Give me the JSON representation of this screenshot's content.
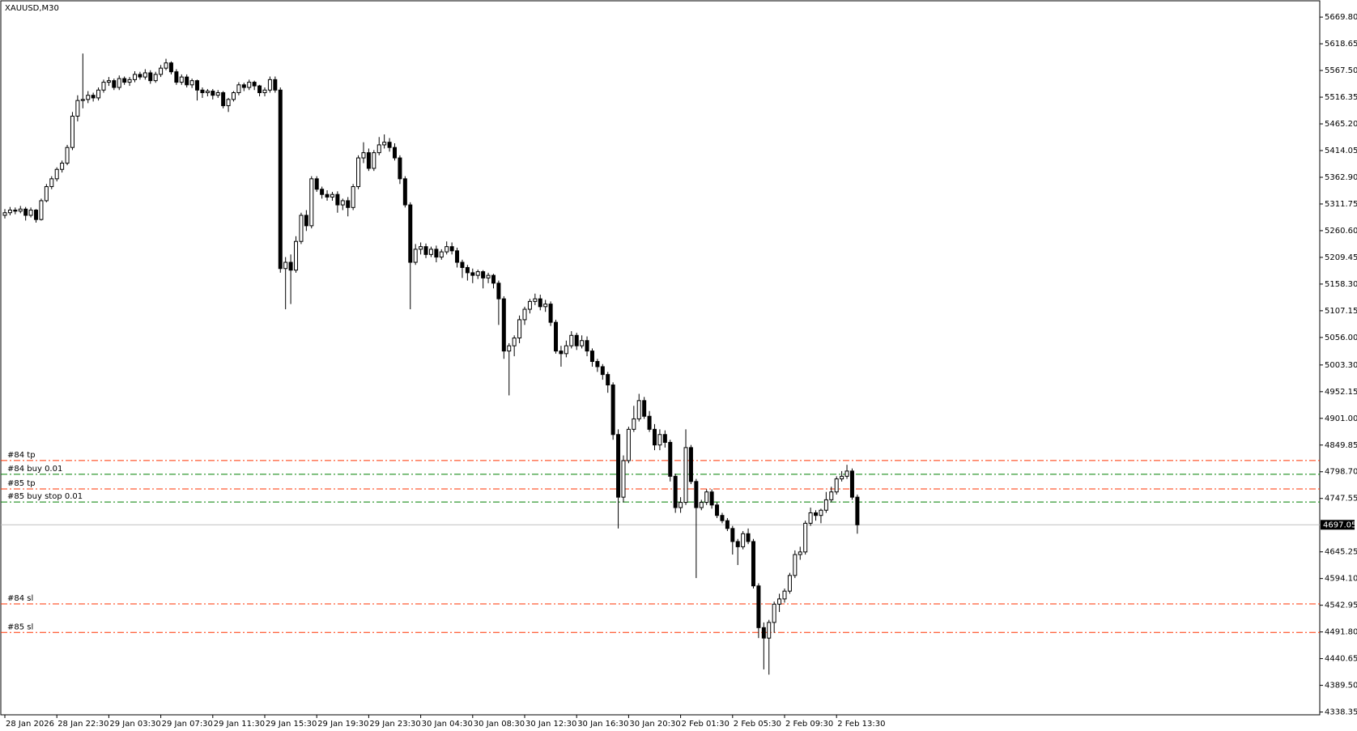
{
  "chart_data": {
    "type": "candlestick",
    "title": "XAUUSD,M30",
    "up_color": "#ffffff",
    "down_color": "#000000",
    "outline_color": "#000000",
    "categories": [
      "28 Jan 2026",
      null,
      null,
      null,
      null,
      null,
      null,
      null,
      null,
      null,
      "28 Jan 22:30",
      null,
      null,
      null,
      null,
      null,
      null,
      null,
      null,
      null,
      "29 Jan 03:30",
      null,
      null,
      null,
      null,
      null,
      null,
      null,
      null,
      null,
      "29 Jan 07:30",
      null,
      null,
      null,
      null,
      null,
      null,
      null,
      null,
      null,
      "29 Jan 11:30",
      null,
      null,
      null,
      null,
      null,
      null,
      null,
      null,
      null,
      "29 Jan 15:30",
      null,
      null,
      null,
      null,
      null,
      null,
      null,
      null,
      null,
      "29 Jan 19:30",
      null,
      null,
      null,
      null,
      null,
      null,
      null,
      null,
      null,
      "29 Jan 23:30",
      null,
      null,
      null,
      null,
      null,
      null,
      null,
      null,
      null,
      "30 Jan 04:30",
      null,
      null,
      null,
      null,
      null,
      null,
      null,
      null,
      null,
      "30 Jan 08:30",
      null,
      null,
      null,
      null,
      null,
      null,
      null,
      null,
      null,
      "30 Jan 12:30",
      null,
      null,
      null,
      null,
      null,
      null,
      null,
      null,
      null,
      "30 Jan 16:30",
      null,
      null,
      null,
      null,
      null,
      null,
      null,
      null,
      null,
      "30 Jan 20:30",
      null,
      null,
      null,
      null,
      null,
      null,
      null,
      null,
      null,
      "2 Feb 01:30",
      null,
      null,
      null,
      null,
      null,
      null,
      null,
      null,
      null,
      "2 Feb 05:30",
      null,
      null,
      null,
      null,
      null,
      null,
      null,
      null,
      null,
      "2 Feb 09:30",
      null,
      null,
      null,
      null,
      null,
      null,
      null,
      null,
      null,
      "2 Feb 13:30",
      null,
      null,
      null,
      null
    ],
    "open": [
      5290,
      5295,
      5300,
      5298,
      5302,
      5290,
      5300,
      5282,
      5318,
      5345,
      5360,
      5378,
      5390,
      5420,
      5480,
      5510,
      5512,
      5520,
      5515,
      5530,
      5545,
      5548,
      5535,
      5552,
      5545,
      5550,
      5560,
      5555,
      5563,
      5548,
      5560,
      5572,
      5582,
      5565,
      5545,
      5555,
      5540,
      5548,
      5530,
      5525,
      5528,
      5520,
      5525,
      5500,
      5512,
      5525,
      5540,
      5535,
      5545,
      5538,
      5525,
      5530,
      5550,
      5530,
      5188,
      5200,
      5185,
      5240,
      5290,
      5270,
      5360,
      5340,
      5330,
      5325,
      5330,
      5310,
      5318,
      5305,
      5345,
      5400,
      5410,
      5380,
      5410,
      5425,
      5430,
      5420,
      5400,
      5360,
      5310,
      5200,
      5225,
      5230,
      5215,
      5225,
      5210,
      5220,
      5230,
      5222,
      5200,
      5190,
      5180,
      5175,
      5182,
      5170,
      5175,
      5160,
      5130,
      5030,
      5040,
      5055,
      5090,
      5110,
      5125,
      5130,
      5115,
      5120,
      5085,
      5030,
      5025,
      5040,
      5060,
      5040,
      5050,
      5030,
      5010,
      5000,
      4985,
      4965,
      4870,
      4750,
      4820,
      4880,
      4900,
      4935,
      4905,
      4880,
      4850,
      4870,
      4855,
      4790,
      4730,
      4740,
      4845,
      4780,
      4730,
      4740,
      4760,
      4735,
      4715,
      4705,
      4690,
      4665,
      4655,
      4680,
      4665,
      4580,
      4500,
      4480,
      4510,
      4545,
      4555,
      4570,
      4600,
      4640,
      4645,
      4700,
      4720,
      4715,
      4725,
      4745,
      4760,
      4785,
      4790,
      4800,
      4750
    ],
    "high": [
      5302,
      5306,
      5305,
      5308,
      5306,
      5305,
      5302,
      5322,
      5350,
      5365,
      5382,
      5395,
      5425,
      5488,
      5520,
      5600,
      5528,
      5525,
      5535,
      5550,
      5555,
      5552,
      5558,
      5556,
      5555,
      5566,
      5565,
      5570,
      5568,
      5565,
      5578,
      5590,
      5585,
      5570,
      5560,
      5560,
      5552,
      5550,
      5535,
      5532,
      5532,
      5530,
      5528,
      5515,
      5528,
      5545,
      5544,
      5550,
      5548,
      5540,
      5535,
      5556,
      5556,
      5535,
      5210,
      5215,
      5250,
      5295,
      5300,
      5365,
      5365,
      5345,
      5338,
      5335,
      5336,
      5322,
      5325,
      5350,
      5405,
      5430,
      5418,
      5415,
      5440,
      5445,
      5438,
      5428,
      5405,
      5365,
      5315,
      5235,
      5238,
      5236,
      5230,
      5232,
      5225,
      5240,
      5238,
      5228,
      5205,
      5195,
      5188,
      5186,
      5185,
      5180,
      5178,
      5165,
      5135,
      5045,
      5060,
      5098,
      5115,
      5130,
      5140,
      5138,
      5128,
      5125,
      5090,
      5040,
      5050,
      5068,
      5065,
      5060,
      5058,
      5035,
      5015,
      5005,
      4990,
      4970,
      4880,
      4830,
      4885,
      4925,
      4948,
      4942,
      4915,
      4890,
      4880,
      4878,
      4860,
      4795,
      4750,
      4880,
      4850,
      4785,
      4745,
      4765,
      4765,
      4740,
      4720,
      4710,
      4695,
      4670,
      4685,
      4690,
      4670,
      4585,
      4510,
      4515,
      4550,
      4565,
      4575,
      4605,
      4648,
      4655,
      4705,
      4730,
      4725,
      4728,
      4760,
      4770,
      4790,
      4800,
      4812,
      4805,
      4755
    ],
    "low": [
      5284,
      5290,
      5292,
      5294,
      5280,
      5286,
      5276,
      5280,
      5315,
      5340,
      5355,
      5372,
      5386,
      5415,
      5470,
      5495,
      5505,
      5508,
      5510,
      5525,
      5538,
      5530,
      5530,
      5540,
      5538,
      5545,
      5550,
      5550,
      5542,
      5544,
      5555,
      5568,
      5560,
      5540,
      5540,
      5535,
      5534,
      5510,
      5515,
      5518,
      5512,
      5515,
      5495,
      5488,
      5508,
      5520,
      5528,
      5530,
      5530,
      5518,
      5518,
      5525,
      5525,
      5180,
      5110,
      5120,
      5180,
      5235,
      5260,
      5265,
      5335,
      5322,
      5318,
      5318,
      5295,
      5300,
      5288,
      5300,
      5340,
      5390,
      5375,
      5375,
      5405,
      5418,
      5412,
      5395,
      5350,
      5305,
      5110,
      5195,
      5215,
      5208,
      5210,
      5200,
      5205,
      5215,
      5215,
      5190,
      5170,
      5165,
      5160,
      5168,
      5150,
      5160,
      5150,
      5080,
      5015,
      4945,
      5020,
      5045,
      5080,
      5102,
      5118,
      5108,
      5105,
      5078,
      5025,
      5000,
      5018,
      5035,
      5032,
      5035,
      5020,
      5000,
      4990,
      4975,
      4950,
      4860,
      4690,
      4740,
      4815,
      4875,
      4895,
      4900,
      4875,
      4840,
      4840,
      4845,
      4780,
      4720,
      4720,
      4735,
      4775,
      4595,
      4725,
      4735,
      4728,
      4710,
      4700,
      4685,
      4640,
      4620,
      4650,
      4660,
      4575,
      4480,
      4420,
      4410,
      4490,
      4530,
      4548,
      4565,
      4595,
      4630,
      4640,
      4695,
      4705,
      4700,
      4720,
      4740,
      4755,
      4780,
      4785,
      4745,
      4680
    ],
    "close": [
      5295,
      5300,
      5298,
      5302,
      5290,
      5300,
      5282,
      5318,
      5345,
      5360,
      5378,
      5390,
      5420,
      5480,
      5510,
      5512,
      5520,
      5515,
      5530,
      5545,
      5548,
      5535,
      5552,
      5545,
      5550,
      5560,
      5555,
      5563,
      5548,
      5560,
      5572,
      5582,
      5565,
      5545,
      5555,
      5540,
      5548,
      5530,
      5525,
      5528,
      5520,
      5525,
      5500,
      5512,
      5525,
      5540,
      5535,
      5545,
      5538,
      5525,
      5530,
      5550,
      5530,
      5188,
      5200,
      5185,
      5240,
      5290,
      5270,
      5360,
      5340,
      5330,
      5325,
      5330,
      5310,
      5318,
      5305,
      5345,
      5400,
      5410,
      5380,
      5410,
      5425,
      5430,
      5420,
      5400,
      5360,
      5310,
      5200,
      5225,
      5230,
      5215,
      5225,
      5210,
      5220,
      5230,
      5222,
      5200,
      5190,
      5180,
      5175,
      5182,
      5170,
      5175,
      5160,
      5130,
      5030,
      5040,
      5055,
      5090,
      5110,
      5125,
      5130,
      5115,
      5120,
      5085,
      5030,
      5025,
      5040,
      5060,
      5040,
      5050,
      5030,
      5010,
      5000,
      4985,
      4965,
      4870,
      4750,
      4820,
      4880,
      4900,
      4935,
      4905,
      4880,
      4850,
      4870,
      4855,
      4790,
      4730,
      4740,
      4845,
      4780,
      4730,
      4740,
      4760,
      4735,
      4715,
      4705,
      4690,
      4665,
      4655,
      4680,
      4665,
      4580,
      4500,
      4480,
      4510,
      4545,
      4555,
      4570,
      4600,
      4640,
      4645,
      4700,
      4720,
      4715,
      4725,
      4745,
      4760,
      4785,
      4790,
      4800,
      4750,
      4697.05
    ],
    "ylim": [
      4333,
      5701
    ],
    "yticks": [
      {
        "value": 5669.8,
        "label": "5669.80"
      },
      {
        "value": 5618.65,
        "label": "5618.65"
      },
      {
        "value": 5567.5,
        "label": "5567.50"
      },
      {
        "value": 5516.35,
        "label": "5516.35"
      },
      {
        "value": 5465.2,
        "label": "5465.20"
      },
      {
        "value": 5414.05,
        "label": "5414.05"
      },
      {
        "value": 5362.9,
        "label": "5362.90"
      },
      {
        "value": 5311.75,
        "label": "5311.75"
      },
      {
        "value": 5260.6,
        "label": "5260.60"
      },
      {
        "value": 5209.45,
        "label": "5209.45"
      },
      {
        "value": 5158.3,
        "label": "5158.30"
      },
      {
        "value": 5107.15,
        "label": "5107.15"
      },
      {
        "value": 5056,
        "label": "5056.00"
      },
      {
        "value": 5003.3,
        "label": "5003.30"
      },
      {
        "value": 4952.15,
        "label": "4952.15"
      },
      {
        "value": 4901,
        "label": "4901.00"
      },
      {
        "value": 4849.85,
        "label": "4849.85"
      },
      {
        "value": 4798.7,
        "label": "4798.70"
      },
      {
        "value": 4747.55,
        "label": "4747.55"
      },
      {
        "value": 4645.25,
        "label": "4645.25"
      },
      {
        "value": 4594.1,
        "label": "4594.10"
      },
      {
        "value": 4542.95,
        "label": "4542.95"
      },
      {
        "value": 4491.8,
        "label": "4491.80"
      },
      {
        "value": 4440.65,
        "label": "4440.65"
      },
      {
        "value": 4389.5,
        "label": "4389.50"
      },
      {
        "value": 4338.35,
        "label": "4338.35"
      }
    ],
    "levels": [
      {
        "label": "#84 tp",
        "value": 4820.3,
        "color": "#ff3300"
      },
      {
        "label": "#84 buy 0.01",
        "value": 4793.8,
        "color": "#008000"
      },
      {
        "label": "#85 tp",
        "value": 4765.7,
        "color": "#ff3300"
      },
      {
        "label": "#85 buy stop 0.01",
        "value": 4740.8,
        "color": "#008000"
      },
      {
        "label": "#84 sl",
        "value": 4545.4,
        "color": "#ff3300"
      },
      {
        "label": "#85 sl",
        "value": 4490.8,
        "color": "#ff3300"
      }
    ],
    "price_line_color": "#c0c0c0"
  }
}
